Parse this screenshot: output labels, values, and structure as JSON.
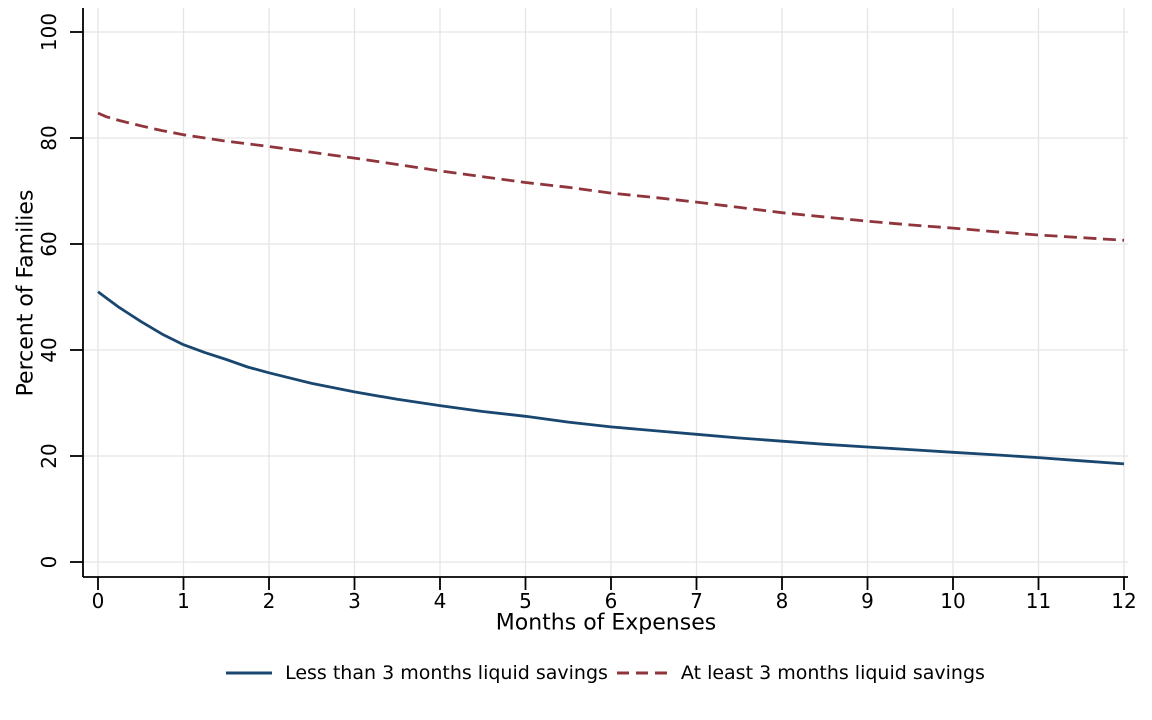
{
  "chart_data": {
    "type": "line",
    "title": "",
    "xlabel": "Months of Expenses",
    "ylabel": "Percent of Families",
    "xlim": [
      0,
      12
    ],
    "ylim": [
      0,
      100
    ],
    "x_ticks": [
      "0",
      "1",
      "2",
      "3",
      "4",
      "5",
      "6",
      "7",
      "8",
      "9",
      "10",
      "11",
      "12"
    ],
    "y_ticks": [
      "0",
      "20",
      "40",
      "60",
      "80",
      "100"
    ],
    "grid": "on",
    "legend_position": "bottom-center",
    "background_color": "#ffffff",
    "gridline_color": "#e5e5e5",
    "axis_color": "#000000",
    "x": [
      0,
      0.1,
      0.25,
      0.5,
      0.75,
      1,
      1.25,
      1.5,
      1.75,
      2,
      2.5,
      3,
      3.5,
      4,
      4.5,
      5,
      5.5,
      6,
      6.5,
      7,
      7.5,
      8,
      8.5,
      9,
      9.5,
      10,
      10.5,
      11,
      11.5,
      12
    ],
    "series": [
      {
        "name": "Less than 3 months liquid savings",
        "color": "#1a476f",
        "line_style": "solid",
        "values": [
          51.0,
          49.8,
          48.0,
          45.4,
          43.0,
          41.0,
          39.5,
          38.2,
          36.8,
          35.7,
          33.7,
          32.1,
          30.7,
          29.5,
          28.4,
          27.5,
          26.4,
          25.5,
          24.8,
          24.1,
          23.4,
          22.8,
          22.2,
          21.7,
          21.2,
          20.7,
          20.2,
          19.7,
          19.1,
          18.5
        ]
      },
      {
        "name": "At least 3 months liquid savings",
        "color": "#90353b",
        "line_style": "dashed",
        "values": [
          84.7,
          84.0,
          83.3,
          82.3,
          81.4,
          80.6,
          80.0,
          79.4,
          78.9,
          78.4,
          77.3,
          76.2,
          75.0,
          73.8,
          72.7,
          71.6,
          70.7,
          69.6,
          68.8,
          67.9,
          66.9,
          65.9,
          65.1,
          64.3,
          63.6,
          63.0,
          62.3,
          61.7,
          61.2,
          60.7
        ]
      }
    ]
  }
}
